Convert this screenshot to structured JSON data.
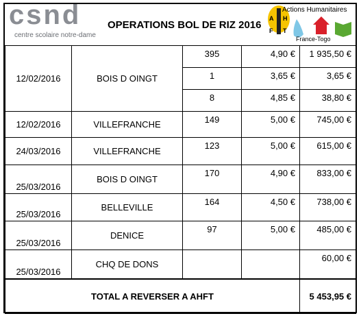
{
  "header": {
    "logo_left": {
      "mark": "csnd",
      "subtitle": "centre scolaire notre-dame"
    },
    "title": "OPERATIONS BOL DE RIZ 2016",
    "logo_right": {
      "name": "Actions Humanitaires",
      "letters": [
        "A",
        "H",
        "F",
        "T"
      ],
      "place": "France-Togo"
    }
  },
  "table": {
    "rows": [
      {
        "date": "12/02/2016",
        "place": "BOIS D OINGT",
        "lines": [
          {
            "quantity": "395",
            "price": "4,90 €",
            "total": "1 935,50 €"
          },
          {
            "quantity": "1",
            "price": "3,65 €",
            "total": "3,65 €"
          },
          {
            "quantity": "8",
            "price": "4,85 €",
            "total": "38,80 €"
          }
        ]
      },
      {
        "date": "12/02/2016",
        "place": "VILLEFRANCHE",
        "lines": [
          {
            "quantity": "149",
            "price": "5,00 €",
            "total": "745,00 €"
          }
        ]
      },
      {
        "date": "24/03/2016",
        "place": "VILLEFRANCHE",
        "lines": [
          {
            "quantity": "123",
            "price": "5,00 €",
            "total": "615,00 €"
          }
        ]
      },
      {
        "date": "25/03/2016",
        "place": "BOIS D OINGT",
        "lines": [
          {
            "quantity": "170",
            "price": "4,90 €",
            "total": "833,00 €"
          }
        ]
      },
      {
        "date": "25/03/2016",
        "place": "BELLEVILLE",
        "lines": [
          {
            "quantity": "164",
            "price": "4,50 €",
            "total": "738,00 €"
          }
        ]
      },
      {
        "date": "25/03/2016",
        "place": "DENICE",
        "lines": [
          {
            "quantity": "97",
            "price": "5,00 €",
            "total": "485,00 €"
          }
        ]
      },
      {
        "date": "25/03/2016",
        "place": "CHQ DE DONS",
        "lines": [
          {
            "total": "60,00 €"
          }
        ]
      }
    ],
    "footer": {
      "label": "TOTAL A REVERSER A AHFT",
      "total": "5 453,95 €"
    }
  }
}
